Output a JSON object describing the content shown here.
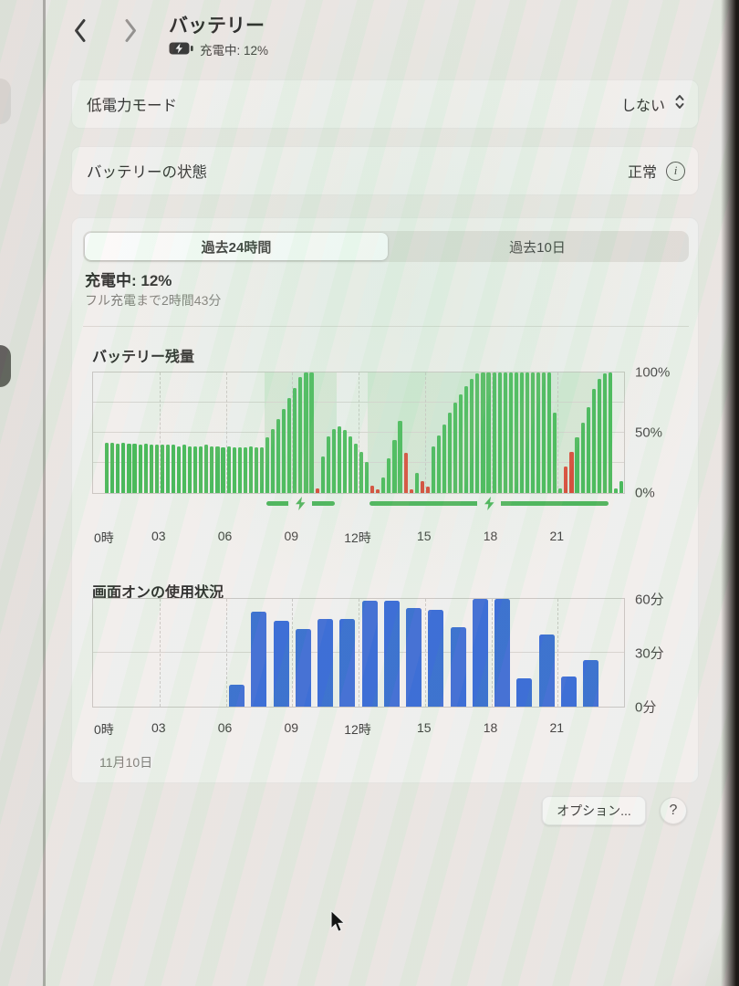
{
  "header": {
    "title": "バッテリー",
    "subtitle": "充電中: 12%"
  },
  "low_power_row": {
    "label": "低電力モード",
    "value": "しない"
  },
  "health_row": {
    "label": "バッテリーの状態",
    "value": "正常",
    "info_icon": "info-circle"
  },
  "tabs": [
    {
      "label": "過去24時間",
      "selected": true
    },
    {
      "label": "過去10日",
      "selected": false
    }
  ],
  "charge_status": {
    "title": "充電中: 12%",
    "subtitle": "フル充電まで2時間43分"
  },
  "footer": {
    "options_label": "オプション...",
    "help_label": "?"
  },
  "colors": {
    "green": "#3cb44c",
    "red": "#d63b26",
    "blue": "#2f63d2",
    "charge_region": "rgba(86,192,102,0.18)"
  },
  "chart_data": [
    {
      "type": "bar",
      "title": "バッテリー残量",
      "unit": "percent",
      "slot_minutes": 15,
      "ylim": [
        0,
        100
      ],
      "ytick_labels": [
        "100%",
        "50%",
        "0%"
      ],
      "xtick_hours": [
        0,
        3,
        6,
        9,
        12,
        15,
        18,
        21
      ],
      "xtick_labels": [
        "0時",
        "03",
        "06",
        "09",
        "12時",
        "15",
        "18",
        "21"
      ],
      "charge_regions_hours": [
        [
          7.75,
          11.0
        ],
        [
          12.4,
          23.4
        ]
      ],
      "values": [
        null,
        null,
        42,
        42,
        41,
        42,
        41,
        41,
        40,
        41,
        40,
        40,
        40,
        40,
        40,
        39,
        40,
        39,
        39,
        39,
        40,
        39,
        39,
        38,
        39,
        38,
        38,
        38,
        39,
        38,
        38,
        46,
        53,
        61,
        70,
        79,
        87,
        96,
        100,
        100,
        4,
        30,
        47,
        53,
        55,
        52,
        47,
        41,
        34,
        26,
        6,
        3,
        13,
        29,
        44,
        60,
        33,
        3,
        17,
        10,
        5,
        39,
        48,
        57,
        67,
        75,
        82,
        89,
        95,
        99,
        100,
        100,
        100,
        100,
        100,
        100,
        100,
        100,
        100,
        100,
        100,
        100,
        100,
        67,
        4,
        22,
        34,
        46,
        58,
        71,
        86,
        95,
        99,
        100,
        4,
        10
      ],
      "bar_colors": "..ggggggggggggggggggggggggggggggggggggggrgggggggggrrggggrrgrrggggggggggggggggggggggggrrgggggggggrg"
    },
    {
      "type": "bar",
      "title": "画面オンの使用状況",
      "unit": "minutes",
      "slot_minutes": 60,
      "ylim": [
        0,
        60
      ],
      "ytick_labels": [
        "60分",
        "30分",
        "0分"
      ],
      "xtick_hours": [
        0,
        3,
        6,
        9,
        12,
        15,
        18,
        21
      ],
      "xtick_labels": [
        "0時",
        "03",
        "06",
        "09",
        "12時",
        "15",
        "18",
        "21"
      ],
      "date_label": "11月10日",
      "values": [
        0,
        0,
        0,
        0,
        0,
        0,
        12,
        53,
        48,
        43,
        49,
        49,
        59,
        59,
        55,
        54,
        44,
        60,
        60,
        16,
        40,
        17,
        26,
        0
      ]
    }
  ]
}
